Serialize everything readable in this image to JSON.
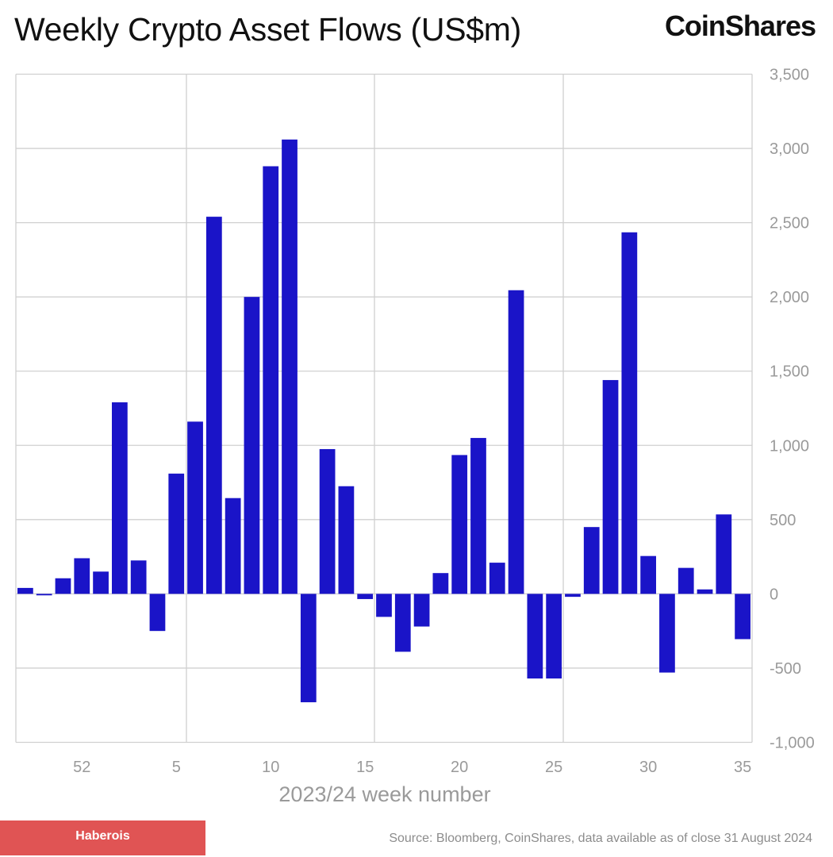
{
  "header": {
    "title": "Weekly Crypto Asset Flows (US$m)",
    "logo_text": "CoinShares"
  },
  "footer": {
    "badge_text": "Haberois",
    "source_text": "Source: Bloomberg, CoinShares, data available as of close 31 August 2024"
  },
  "colors": {
    "bar": "#1a14c8",
    "grid": "#d0d0d0",
    "badge": "#e05454"
  },
  "chart_data": {
    "type": "bar",
    "title": "Weekly Crypto Asset Flows (US$m)",
    "xlabel": "2023/24 week number",
    "ylabel": "",
    "ylim": [
      -1000,
      3500
    ],
    "yticks": [
      3500,
      3000,
      2500,
      2000,
      1500,
      1000,
      500,
      0,
      -500,
      -1000
    ],
    "ytick_labels": [
      "3,500",
      "3,000",
      "2,500",
      "2,000",
      "1,500",
      "1,000",
      "500",
      "0",
      "-500",
      "-1,000"
    ],
    "xtick_labels": [
      {
        "label": "52",
        "week": 52
      },
      {
        "label": "5",
        "week": 5
      },
      {
        "label": "10",
        "week": 10
      },
      {
        "label": "15",
        "week": 15
      },
      {
        "label": "20",
        "week": 20
      },
      {
        "label": "25",
        "week": 25
      },
      {
        "label": "30",
        "week": 30
      },
      {
        "label": "35",
        "week": 35
      }
    ],
    "grid": true,
    "y_axis_position": "right",
    "categories": [
      49,
      50,
      51,
      52,
      1,
      2,
      3,
      4,
      5,
      6,
      7,
      8,
      9,
      10,
      11,
      12,
      13,
      14,
      15,
      16,
      17,
      18,
      19,
      20,
      21,
      22,
      23,
      24,
      25,
      26,
      27,
      28,
      29,
      30,
      31,
      32,
      33,
      34,
      35
    ],
    "values": [
      40,
      -10,
      105,
      240,
      150,
      1290,
      225,
      -250,
      810,
      1160,
      2540,
      645,
      2000,
      2880,
      3060,
      -730,
      975,
      725,
      -35,
      -155,
      -390,
      -220,
      140,
      935,
      1050,
      210,
      2045,
      -570,
      -570,
      -20,
      450,
      1440,
      2435,
      255,
      -530,
      175,
      30,
      535,
      -305
    ]
  }
}
